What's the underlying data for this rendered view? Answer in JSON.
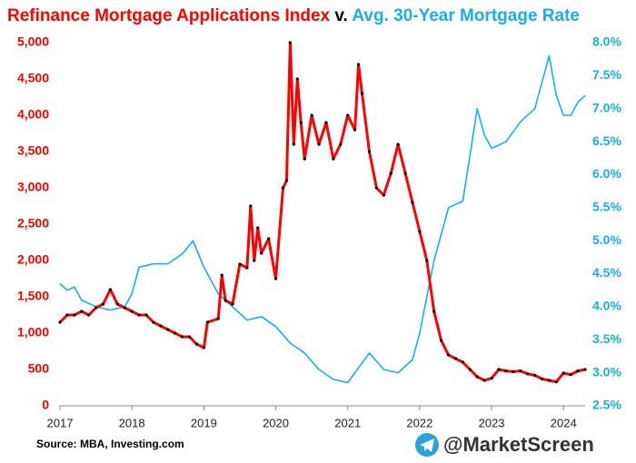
{
  "chart_data": {
    "type": "line",
    "title_connector": "v.",
    "source": "Source: MBA, Investing.com",
    "watermark": "@MarketScreen",
    "xlim": [
      2017,
      2024.3
    ],
    "xticks": [
      2017,
      2018,
      2019,
      2020,
      2021,
      2022,
      2023,
      2024
    ],
    "ylim": [
      0,
      5000
    ],
    "yticks": [
      0,
      500,
      {
        "value": 1000,
        "label": "1,000"
      },
      {
        "value": 1500,
        "label": "1,500"
      },
      {
        "value": 2000,
        "label": "2,000"
      },
      {
        "value": 2500,
        "label": "2,500"
      },
      {
        "value": 3000,
        "label": "3,000"
      },
      {
        "value": 3500,
        "label": "3,500"
      },
      {
        "value": 4000,
        "label": "4,000"
      },
      {
        "value": 4500,
        "label": "4,500"
      },
      {
        "value": 5000,
        "label": "5,000"
      }
    ],
    "y2lim": [
      2.5,
      8.0
    ],
    "y2ticks": [
      {
        "value": 2.5,
        "label": "2.5%"
      },
      {
        "value": 3.0,
        "label": "3.0%"
      },
      {
        "value": 3.5,
        "label": "3.5%"
      },
      {
        "value": 4.0,
        "label": "4.0%"
      },
      {
        "value": 4.5,
        "label": "4.5%"
      },
      {
        "value": 5.0,
        "label": "5.0%"
      },
      {
        "value": 5.5,
        "label": "5.5%"
      },
      {
        "value": 6.0,
        "label": "6.0%"
      },
      {
        "value": 6.5,
        "label": "6.5%"
      },
      {
        "value": 7.0,
        "label": "7.0%"
      },
      {
        "value": 7.5,
        "label": "7.5%"
      },
      {
        "value": 8.0,
        "label": "8.0%"
      }
    ],
    "series": [
      {
        "name": "Refinance Mortgage Applications Index",
        "color": "#ff0000",
        "marker_color": "#000000",
        "axis": "y",
        "x": [
          2017.0,
          2017.1,
          2017.2,
          2017.3,
          2017.4,
          2017.5,
          2017.6,
          2017.7,
          2017.8,
          2017.9,
          2018.0,
          2018.1,
          2018.2,
          2018.3,
          2018.4,
          2018.5,
          2018.6,
          2018.7,
          2018.8,
          2018.9,
          2019.0,
          2019.05,
          2019.2,
          2019.25,
          2019.3,
          2019.4,
          2019.5,
          2019.6,
          2019.65,
          2019.7,
          2019.75,
          2019.8,
          2019.9,
          2020.0,
          2020.1,
          2020.15,
          2020.2,
          2020.25,
          2020.3,
          2020.35,
          2020.4,
          2020.5,
          2020.6,
          2020.7,
          2020.8,
          2020.9,
          2021.0,
          2021.1,
          2021.15,
          2021.2,
          2021.3,
          2021.4,
          2021.5,
          2021.6,
          2021.7,
          2021.8,
          2021.9,
          2022.0,
          2022.1,
          2022.2,
          2022.3,
          2022.4,
          2022.5,
          2022.6,
          2022.7,
          2022.8,
          2022.9,
          2023.0,
          2023.1,
          2023.2,
          2023.3,
          2023.4,
          2023.5,
          2023.6,
          2023.7,
          2023.8,
          2023.9,
          2024.0,
          2024.1,
          2024.2,
          2024.3
        ],
        "values": [
          1150,
          1250,
          1250,
          1300,
          1250,
          1350,
          1400,
          1600,
          1400,
          1350,
          1300,
          1250,
          1250,
          1150,
          1100,
          1050,
          1000,
          950,
          950,
          850,
          800,
          1150,
          1200,
          1800,
          1450,
          1400,
          1950,
          1900,
          2750,
          2000,
          2450,
          2100,
          2300,
          1750,
          3000,
          3100,
          5000,
          3600,
          4500,
          3900,
          3400,
          4000,
          3600,
          3900,
          3400,
          3600,
          4000,
          3800,
          4700,
          4300,
          3500,
          3000,
          2900,
          3200,
          3600,
          3200,
          2800,
          2400,
          2000,
          1300,
          900,
          700,
          650,
          600,
          500,
          400,
          350,
          380,
          500,
          480,
          470,
          480,
          440,
          420,
          370,
          350,
          330,
          450,
          430,
          480,
          500
        ]
      },
      {
        "name": "Avg. 30-Year Mortgage Rate",
        "color": "#1aaee8",
        "axis": "y2",
        "x": [
          2017.0,
          2017.1,
          2017.2,
          2017.3,
          2017.5,
          2017.7,
          2017.9,
          2018.0,
          2018.1,
          2018.3,
          2018.5,
          2018.7,
          2018.85,
          2019.0,
          2019.2,
          2019.4,
          2019.6,
          2019.8,
          2020.0,
          2020.2,
          2020.4,
          2020.6,
          2020.8,
          2021.0,
          2021.2,
          2021.3,
          2021.5,
          2021.7,
          2021.9,
          2022.0,
          2022.2,
          2022.4,
          2022.6,
          2022.8,
          2022.9,
          2023.0,
          2023.2,
          2023.4,
          2023.6,
          2023.75,
          2023.8,
          2023.9,
          2024.0,
          2024.1,
          2024.2,
          2024.3
        ],
        "values": [
          4.35,
          4.25,
          4.3,
          4.1,
          4.0,
          3.95,
          4.0,
          4.2,
          4.6,
          4.65,
          4.65,
          4.8,
          5.0,
          4.6,
          4.2,
          4.0,
          3.8,
          3.85,
          3.7,
          3.45,
          3.3,
          3.05,
          2.9,
          2.85,
          3.15,
          3.3,
          3.05,
          3.0,
          3.2,
          3.6,
          4.7,
          5.5,
          5.6,
          7.0,
          6.6,
          6.4,
          6.5,
          6.8,
          7.0,
          7.6,
          7.8,
          7.2,
          6.9,
          6.9,
          7.1,
          7.2
        ]
      }
    ]
  }
}
